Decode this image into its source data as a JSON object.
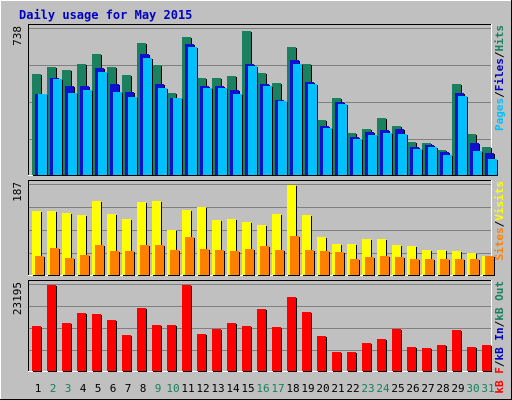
{
  "chart_data": [
    {
      "type": "bar",
      "title": "Daily usage for May 2015",
      "panel": "hits-files-pages",
      "ylabel_parts": [
        "Pages",
        "/",
        "Files",
        "/",
        "Hits"
      ],
      "ymax_label": "738",
      "ylim": [
        0,
        738
      ],
      "grid": true,
      "categories": [
        "1",
        "2",
        "3",
        "4",
        "5",
        "6",
        "7",
        "8",
        "9",
        "10",
        "11",
        "12",
        "13",
        "14",
        "15",
        "16",
        "17",
        "18",
        "19",
        "20",
        "21",
        "22",
        "23",
        "24",
        "25",
        "26",
        "27",
        "28",
        "29",
        "30",
        "31"
      ],
      "series": [
        {
          "name": "Hits",
          "color": "#1a8060",
          "values": [
            510,
            548,
            531,
            563,
            613,
            548,
            505,
            665,
            558,
            413,
            696,
            490,
            490,
            500,
            730,
            517,
            463,
            647,
            560,
            280,
            388,
            210,
            233,
            287,
            246,
            165,
            160,
            126,
            460,
            206,
            142
          ]
        },
        {
          "name": "Files",
          "color": "#1010d0",
          "values": [
            408,
            490,
            452,
            450,
            540,
            460,
            418,
            610,
            460,
            390,
            660,
            452,
            448,
            430,
            560,
            460,
            380,
            580,
            470,
            250,
            370,
            190,
            216,
            226,
            230,
            140,
            151,
            115,
            415,
            160,
            110
          ]
        },
        {
          "name": "Pages",
          "color": "#00c0ff",
          "values": [
            408,
            483,
            412,
            432,
            520,
            420,
            392,
            590,
            440,
            390,
            645,
            442,
            438,
            410,
            550,
            450,
            373,
            560,
            460,
            240,
            360,
            180,
            200,
            210,
            205,
            130,
            140,
            100,
            400,
            120,
            80
          ]
        }
      ]
    },
    {
      "type": "bar",
      "panel": "visits-sites",
      "ylabel_parts": [
        "Sites",
        "/",
        "Visits"
      ],
      "ymax_label": "187",
      "ylim": [
        0,
        187
      ],
      "grid": true,
      "categories": [
        "1",
        "2",
        "3",
        "4",
        "5",
        "6",
        "7",
        "8",
        "9",
        "10",
        "11",
        "12",
        "13",
        "14",
        "15",
        "16",
        "17",
        "18",
        "19",
        "20",
        "21",
        "22",
        "23",
        "24",
        "25",
        "26",
        "27",
        "28",
        "29",
        "30",
        "31"
      ],
      "series": [
        {
          "name": "Visits",
          "color": "#ffff00",
          "values": [
            133,
            134,
            128,
            124,
            154,
            127,
            117,
            151,
            154,
            93,
            136,
            142,
            114,
            117,
            111,
            104,
            127,
            187,
            125,
            79,
            65,
            65,
            74,
            74,
            62,
            60,
            52,
            51,
            50,
            46,
            39
          ]
        },
        {
          "name": "Sites",
          "color": "#ff8000",
          "values": [
            39,
            56,
            36,
            42,
            62,
            49,
            50,
            62,
            63,
            51,
            79,
            55,
            51,
            50,
            54,
            60,
            52,
            80,
            52,
            49,
            47,
            34,
            38,
            39,
            37,
            34,
            34,
            33,
            33,
            34,
            39
          ]
        }
      ]
    },
    {
      "type": "bar",
      "panel": "kbytes",
      "ylabel_parts": [
        "kB F",
        "/",
        "kB In",
        "/",
        "kB Out"
      ],
      "ymax_label": "23195",
      "ylim": [
        0,
        23195
      ],
      "grid": true,
      "categories": [
        "1",
        "2",
        "3",
        "4",
        "5",
        "6",
        "7",
        "8",
        "9",
        "10",
        "11",
        "12",
        "13",
        "14",
        "15",
        "16",
        "17",
        "18",
        "19",
        "20",
        "21",
        "22",
        "23",
        "24",
        "25",
        "26",
        "27",
        "28",
        "29",
        "30",
        "31"
      ],
      "series": [
        {
          "name": "kB F",
          "color": "#ff0000",
          "values": [
            12170,
            23100,
            12850,
            15630,
            15300,
            13730,
            9800,
            17030,
            12280,
            12380,
            23190,
            10020,
            11310,
            12850,
            12160,
            16630,
            11780,
            19870,
            16040,
            9410,
            5160,
            5200,
            7450,
            8630,
            11440,
            6340,
            6330,
            6910,
            11070,
            6530,
            7130
          ]
        }
      ]
    }
  ],
  "x_label_colors": [
    "#000000",
    "#1a8060"
  ],
  "colors": {
    "title": "#0000c0",
    "background": "#c0c0c0",
    "grid": "#808080",
    "bar_shadow": "#000000"
  }
}
